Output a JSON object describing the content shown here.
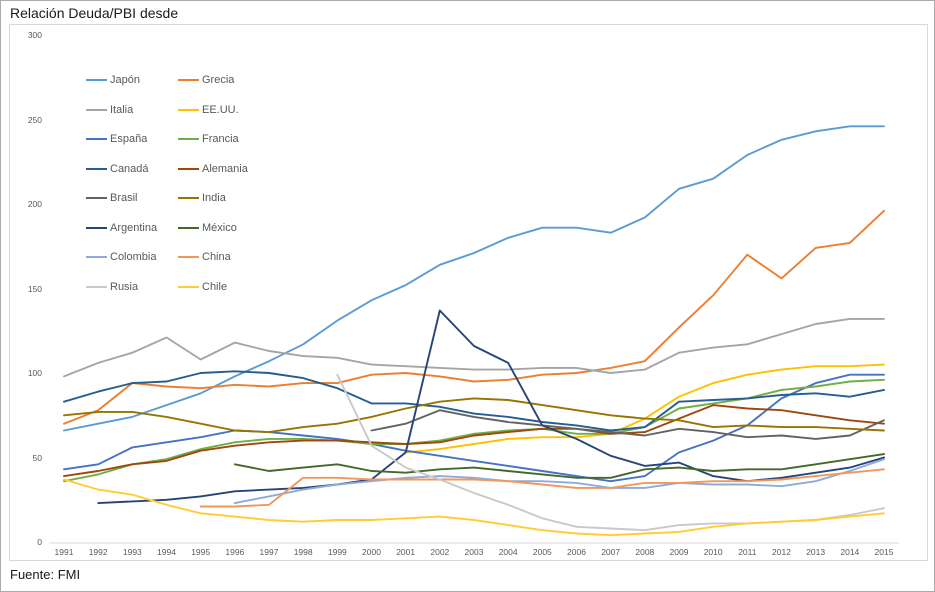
{
  "page": {
    "title": "Relación Deuda/PBI desde",
    "source": "Fuente: FMI"
  },
  "chart_data": {
    "type": "line",
    "title": "Relación Deuda/PBI desde",
    "xlabel": "",
    "ylabel": "",
    "x": [
      1991,
      1992,
      1993,
      1994,
      1995,
      1996,
      1997,
      1998,
      1999,
      2000,
      2001,
      2002,
      2003,
      2004,
      2005,
      2006,
      2007,
      2008,
      2009,
      2010,
      2011,
      2012,
      2013,
      2014,
      2015
    ],
    "ylim": [
      0,
      300
    ],
    "ytick_step": 50,
    "yticks": [
      0,
      50,
      100,
      150,
      200,
      250,
      300
    ],
    "grid": false,
    "legend_position": "upper-left two-column",
    "axis_line_color": "#d9d9d9",
    "tick_label_color": "#595959",
    "series": [
      {
        "name": "Japón",
        "color": "#5B9BD5",
        "values": [
          66,
          70,
          74,
          81,
          88,
          98,
          107,
          117,
          131,
          143,
          152,
          164,
          171,
          180,
          186,
          186,
          183,
          192,
          209,
          215,
          229,
          238,
          243,
          246,
          246
        ]
      },
      {
        "name": "Grecia",
        "color": "#ED7D31",
        "values": [
          70,
          78,
          94,
          92,
          91,
          93,
          92,
          94,
          94,
          99,
          100,
          98,
          95,
          96,
          99,
          100,
          103,
          107,
          127,
          146,
          170,
          156,
          174,
          177,
          196
        ]
      },
      {
        "name": "Italia",
        "color": "#A5A5A5",
        "values": [
          98,
          106,
          112,
          121,
          108,
          118,
          113,
          110,
          109,
          105,
          104,
          103,
          102,
          102,
          103,
          103,
          100,
          102,
          112,
          115,
          117,
          123,
          129,
          132,
          132
        ]
      },
      {
        "name": "EE.UU.",
        "color": "#FFC000",
        "values": [
          null,
          null,
          null,
          null,
          null,
          null,
          null,
          null,
          null,
          null,
          53,
          55,
          58,
          61,
          62,
          62,
          64,
          73,
          86,
          94,
          99,
          102,
          104,
          104,
          105
        ]
      },
      {
        "name": "España",
        "color": "#4472C4",
        "values": [
          43,
          46,
          56,
          59,
          62,
          66,
          65,
          63,
          61,
          58,
          54,
          51,
          48,
          45,
          42,
          39,
          36,
          39,
          53,
          60,
          69,
          85,
          94,
          99,
          99
        ]
      },
      {
        "name": "Francia",
        "color": "#70AD47",
        "values": [
          36,
          40,
          46,
          49,
          55,
          59,
          61,
          61,
          60,
          58,
          58,
          60,
          64,
          66,
          67,
          64,
          64,
          68,
          79,
          82,
          85,
          90,
          92,
          95,
          96
        ]
      },
      {
        "name": "Canadá",
        "color": "#255E91",
        "values": [
          83,
          89,
          94,
          95,
          100,
          101,
          100,
          97,
          91,
          82,
          82,
          80,
          76,
          74,
          71,
          69,
          66,
          68,
          83,
          84,
          85,
          87,
          88,
          86,
          90
        ]
      },
      {
        "name": "Alemania",
        "color": "#9E480E",
        "values": [
          39,
          42,
          46,
          48,
          54,
          57,
          59,
          60,
          60,
          59,
          58,
          59,
          63,
          65,
          67,
          67,
          64,
          65,
          73,
          81,
          79,
          78,
          75,
          72,
          70
        ]
      },
      {
        "name": "Brasil",
        "color": "#636363",
        "values": [
          null,
          null,
          null,
          null,
          null,
          null,
          null,
          null,
          null,
          66,
          70,
          78,
          74,
          71,
          69,
          67,
          65,
          63,
          67,
          65,
          62,
          63,
          61,
          63,
          72
        ]
      },
      {
        "name": "India",
        "color": "#997300",
        "values": [
          75,
          77,
          77,
          74,
          70,
          66,
          65,
          68,
          70,
          74,
          79,
          83,
          85,
          84,
          81,
          78,
          75,
          73,
          72,
          68,
          69,
          68,
          68,
          67,
          66
        ]
      },
      {
        "name": "Argentina",
        "color": "#264478",
        "values": [
          null,
          23,
          24,
          25,
          27,
          30,
          31,
          32,
          34,
          37,
          53,
          137,
          116,
          106,
          69,
          61,
          51,
          45,
          47,
          39,
          36,
          38,
          41,
          44,
          50
        ]
      },
      {
        "name": "México",
        "color": "#43682B",
        "values": [
          null,
          null,
          null,
          null,
          null,
          46,
          42,
          44,
          46,
          42,
          41,
          43,
          44,
          42,
          40,
          38,
          38,
          43,
          44,
          42,
          43,
          43,
          46,
          49,
          52
        ]
      },
      {
        "name": "Colombia",
        "color": "#8FAADC",
        "values": [
          null,
          null,
          null,
          null,
          null,
          23,
          27,
          31,
          34,
          36,
          38,
          39,
          38,
          36,
          36,
          35,
          32,
          32,
          35,
          34,
          34,
          33,
          36,
          42,
          49
        ]
      },
      {
        "name": "China",
        "color": "#F1975A",
        "values": [
          null,
          null,
          null,
          null,
          21,
          21,
          22,
          38,
          38,
          37,
          37,
          37,
          37,
          36,
          34,
          32,
          32,
          35,
          35,
          36,
          36,
          37,
          39,
          41,
          43
        ]
      },
      {
        "name": "Rusia",
        "color": "#C9C9C9",
        "values": [
          null,
          null,
          null,
          null,
          null,
          null,
          null,
          null,
          99,
          57,
          44,
          37,
          29,
          22,
          14,
          9,
          8,
          7,
          10,
          11,
          11,
          12,
          13,
          16,
          20
        ]
      },
      {
        "name": "Chile",
        "color": "#FFCD33",
        "values": [
          37,
          31,
          28,
          22,
          17,
          15,
          13,
          12,
          13,
          13,
          14,
          15,
          13,
          10,
          7,
          5,
          4,
          5,
          6,
          9,
          11,
          12,
          13,
          15,
          17
        ]
      }
    ],
    "legend_rows": [
      [
        "Japón",
        "Grecia"
      ],
      [
        "Italia",
        "EE.UU."
      ],
      [
        "España",
        "Francia"
      ],
      [
        "Canadá",
        "Alemania"
      ],
      [
        "Brasil",
        "India"
      ],
      [
        "Argentina",
        "México"
      ],
      [
        "Colombia",
        "China"
      ],
      [
        "Rusia",
        "Chile"
      ]
    ]
  }
}
